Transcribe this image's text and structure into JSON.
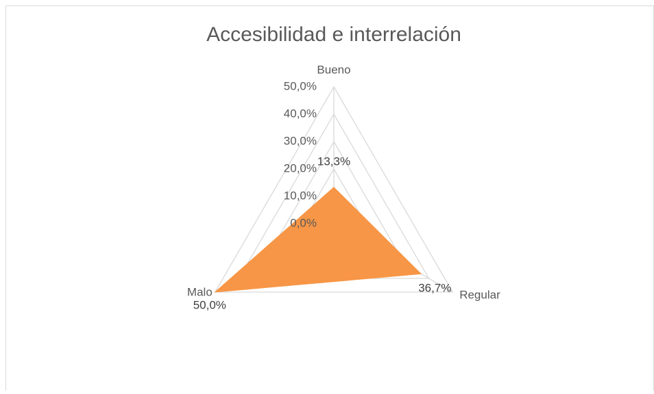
{
  "chart_data": {
    "type": "radar",
    "title": "Accesibilidad e interrelación",
    "categories": [
      "Bueno",
      "Regular",
      "Malo"
    ],
    "values": [
      13.3,
      36.7,
      50.0
    ],
    "value_labels": [
      "13,3%",
      "36,7%",
      "50,0%"
    ],
    "color": "#f79646",
    "ylim": [
      0,
      50
    ],
    "yticks": [
      {
        "value": 0,
        "label": "0,0%"
      },
      {
        "value": 10,
        "label": "10,0%"
      },
      {
        "value": 20,
        "label": "20,0%"
      },
      {
        "value": 30,
        "label": "30,0%"
      },
      {
        "value": 40,
        "label": "40,0%"
      },
      {
        "value": 50,
        "label": "50,0%"
      }
    ],
    "grid": true
  }
}
